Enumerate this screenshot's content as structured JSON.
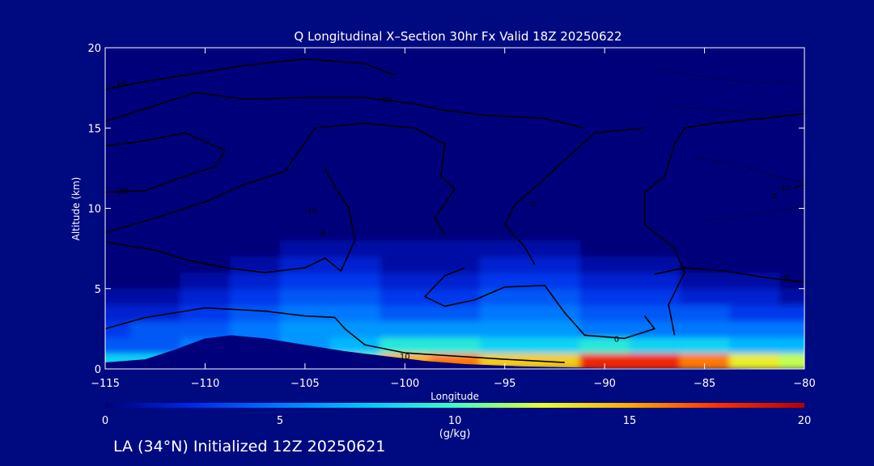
{
  "chart_data": {
    "type": "heatmap",
    "title": "Q Longitudinal X–Section 30hr  Fx Valid 18Z 20250622",
    "xlabel": "Longitude",
    "ylabel": "Altitude (km)",
    "xlim": [
      -115,
      -80
    ],
    "ylim": [
      0,
      20
    ],
    "x_ticks": [
      -115,
      -110,
      -105,
      -100,
      -95,
      -90,
      -85,
      -80
    ],
    "x_tick_labels": [
      "−115",
      "−110",
      "−105",
      "−100",
      "−95",
      "−90",
      "−85",
      "−80"
    ],
    "y_ticks": [
      0,
      5,
      10,
      15,
      20
    ],
    "y_tick_labels": [
      "0",
      "5",
      "10",
      "15",
      "20"
    ],
    "colorbar": {
      "label": "(g/kg)",
      "range": [
        0,
        20
      ],
      "ticks": [
        0,
        5,
        10,
        15,
        20
      ],
      "tick_labels": [
        "0",
        "5",
        "10",
        "15",
        "20"
      ],
      "colors": [
        "#00007a",
        "#0028e6",
        "#0078ff",
        "#00c8ff",
        "#40ffc0",
        "#e6ff30",
        "#ffaa00",
        "#ff3000",
        "#b40000"
      ]
    },
    "moisture_grid": {
      "x": [
        -115,
        -112.5,
        -110,
        -107.5,
        -105,
        -102.5,
        -100,
        -97.5,
        -95,
        -92.5,
        -90,
        -87.5,
        -85,
        -82.5,
        -80
      ],
      "z": [
        0.5,
        1.5,
        2.5,
        3.5,
        4.5,
        5.5,
        6.5,
        7.5,
        8.5
      ],
      "values": [
        [
          8,
          8,
          8,
          8,
          8,
          11,
          15,
          16,
          14,
          14,
          18,
          18,
          16,
          13,
          12
        ],
        [
          4,
          4,
          5,
          5,
          6,
          7,
          9,
          9,
          8,
          8,
          9,
          8,
          8,
          7,
          7
        ],
        [
          3,
          4,
          4,
          5,
          6,
          6,
          6,
          6,
          6,
          6,
          5,
          5,
          5,
          5,
          5
        ],
        [
          2,
          2,
          3,
          4,
          5,
          5,
          4,
          4,
          5,
          5,
          4,
          4,
          4,
          3,
          3
        ],
        [
          1,
          1,
          2,
          3,
          4,
          4,
          3,
          3,
          4,
          4,
          3,
          3,
          2,
          2,
          1
        ],
        [
          0,
          0,
          1,
          2,
          3,
          3,
          2,
          2,
          3,
          3,
          2,
          2,
          1,
          1,
          0
        ],
        [
          0,
          0,
          0,
          1,
          2,
          2,
          1,
          1,
          2,
          2,
          1,
          1,
          0,
          0,
          0
        ],
        [
          0,
          0,
          0,
          0,
          1,
          1,
          1,
          1,
          1,
          1,
          0,
          0,
          0,
          0,
          0
        ],
        [
          0,
          0,
          0,
          0,
          0,
          0,
          0,
          0,
          0,
          0,
          0,
          0,
          0,
          0,
          0
        ]
      ]
    },
    "terrain": [
      [
        -115,
        0.4
      ],
      [
        -113,
        0.6
      ],
      [
        -111.5,
        1.2
      ],
      [
        -110,
        1.9
      ],
      [
        -108.7,
        2.1
      ],
      [
        -107,
        1.9
      ],
      [
        -105,
        1.5
      ],
      [
        -103,
        1.1
      ],
      [
        -101,
        0.8
      ],
      [
        -99,
        0.5
      ],
      [
        -97,
        0.3
      ],
      [
        -94,
        0.15
      ],
      [
        -90,
        0.05
      ],
      [
        -85,
        0.05
      ],
      [
        -80,
        0
      ]
    ],
    "temperature_contours": [
      {
        "label": "10",
        "label_at": [
          -114.2,
          17.8
        ],
        "points": [
          [
            -115,
            17.4
          ],
          [
            -113,
            17.9
          ],
          [
            -111,
            18.3
          ],
          [
            -108,
            18.9
          ],
          [
            -105,
            19.3
          ],
          [
            -102,
            19.0
          ],
          [
            -100.5,
            18.3
          ]
        ]
      },
      {
        "label": "-10",
        "label_at": [
          -101,
          16.8
        ],
        "points": [
          [
            -115,
            15.4
          ],
          [
            -113,
            16.2
          ],
          [
            -110.5,
            17.2
          ],
          [
            -108,
            16.8
          ],
          [
            -105,
            16.9
          ],
          [
            -102,
            16.9
          ],
          [
            -99.5,
            16.5
          ],
          [
            -98,
            16.1
          ],
          [
            -96,
            15.8
          ],
          [
            -93,
            15.6
          ],
          [
            -91,
            15.0
          ]
        ]
      },
      {
        "label": "-20",
        "label_at": [
          -114.2,
          11.1
        ],
        "points": [
          [
            -115,
            11.0
          ],
          [
            -113,
            11.1
          ],
          [
            -111,
            12.0
          ],
          [
            -109.5,
            12.6
          ],
          [
            -109,
            13.6
          ],
          [
            -111,
            14.7
          ],
          [
            -113.5,
            14.1
          ],
          [
            -115,
            13.9
          ]
        ]
      },
      {
        "label": "-10",
        "label_at": [
          -104.7,
          9.9
        ],
        "points": [
          [
            -115,
            8.5
          ],
          [
            -113,
            9.2
          ],
          [
            -110,
            10.4
          ],
          [
            -108,
            11.5
          ],
          [
            -106,
            12.3
          ],
          [
            -104.5,
            15.0
          ],
          [
            -102,
            15.3
          ],
          [
            -99.5,
            15.0
          ],
          [
            -98,
            14.0
          ],
          [
            -98.2,
            12.0
          ],
          [
            -97.5,
            11.2
          ],
          [
            -98.5,
            9.4
          ],
          [
            -98,
            8.3
          ]
        ]
      },
      {
        "label": "0",
        "label_at": [
          -104.1,
          8.5
        ],
        "points": [
          [
            -115,
            7.9
          ],
          [
            -112.5,
            7.4
          ],
          [
            -111,
            6.8
          ],
          [
            -109,
            6.3
          ],
          [
            -107,
            6.0
          ],
          [
            -105,
            6.3
          ],
          [
            -104,
            6.9
          ],
          [
            -103.2,
            6.1
          ],
          [
            -102.5,
            8.0
          ],
          [
            -102.8,
            10.0
          ],
          [
            -103.5,
            11.3
          ],
          [
            -104,
            12.5
          ]
        ]
      },
      {
        "label": "0",
        "label_at": [
          -93.6,
          10.3
        ],
        "points": [
          [
            -93.5,
            6.5
          ],
          [
            -94,
            7.6
          ],
          [
            -95,
            9.0
          ],
          [
            -94.5,
            10.2
          ],
          [
            -93.5,
            11.3
          ],
          [
            -92,
            13.0
          ],
          [
            -90.5,
            14.7
          ],
          [
            -88,
            15.0
          ]
        ]
      },
      {
        "label": "0",
        "label_at": [
          -81.5,
          10.8
        ],
        "points": [
          [
            -86.5,
            2.1
          ],
          [
            -86.8,
            4.0
          ],
          [
            -86,
            6.0
          ],
          [
            -86.5,
            7.5
          ],
          [
            -88,
            9.0
          ],
          [
            -88,
            11.0
          ],
          [
            -87,
            12.0
          ],
          [
            -86.5,
            14.0
          ],
          [
            -86,
            15.0
          ],
          [
            -84.5,
            15.3
          ],
          [
            -82,
            15.6
          ],
          [
            -80,
            15.9
          ]
        ]
      },
      {
        "label": "10",
        "label_at": [
          -100,
          0.8
        ],
        "points": [
          [
            -115,
            2.5
          ],
          [
            -113,
            3.2
          ],
          [
            -110,
            3.8
          ],
          [
            -107,
            3.6
          ],
          [
            -105,
            3.3
          ],
          [
            -103.5,
            3.2
          ],
          [
            -103,
            2.5
          ],
          [
            -102,
            1.5
          ],
          [
            -100,
            1.0
          ],
          [
            -97.5,
            0.8
          ],
          [
            -95,
            0.6
          ],
          [
            -92,
            0.4
          ]
        ]
      },
      {
        "label": "0",
        "label_at": [
          -89.4,
          1.9
        ],
        "points": [
          [
            -88,
            3.3
          ],
          [
            -87.5,
            2.5
          ],
          [
            -89,
            1.9
          ],
          [
            -91,
            2.1
          ],
          [
            -92,
            3.5
          ],
          [
            -93,
            5.2
          ],
          [
            -95,
            5.1
          ],
          [
            -96.5,
            4.3
          ],
          [
            -98,
            3.9
          ],
          [
            -99,
            4.5
          ],
          [
            -98,
            5.8
          ],
          [
            -97,
            6.3
          ]
        ]
      },
      {
        "label": "0",
        "label_at": [
          -80.9,
          5.7
        ],
        "points": [
          [
            -87.5,
            5.9
          ],
          [
            -86,
            6.3
          ],
          [
            -84,
            6.1
          ],
          [
            -82,
            5.7
          ],
          [
            -80,
            5.4
          ]
        ]
      },
      {
        "label": "-10",
        "label_at": [
          -81,
          11.3
        ],
        "points": [
          [
            -80.5,
            11.3
          ],
          [
            -79.8,
            11.5
          ]
        ]
      }
    ],
    "dashed_contours": [
      [
        [
          -87.5,
          18.7
        ],
        [
          -85,
          18.2
        ],
        [
          -82.5,
          17.8
        ],
        [
          -80,
          18.0
        ]
      ],
      [
        [
          -87,
          16.4
        ],
        [
          -84.5,
          16.1
        ],
        [
          -82,
          15.9
        ],
        [
          -80,
          16.1
        ]
      ],
      [
        [
          -85.5,
          13.2
        ],
        [
          -83,
          12.6
        ],
        [
          -81.5,
          12.0
        ],
        [
          -80,
          11.6
        ]
      ],
      [
        [
          -85,
          9.2
        ],
        [
          -83,
          9.6
        ],
        [
          -81,
          9.9
        ],
        [
          -80,
          10.2
        ]
      ]
    ],
    "footer": "LA (34°N) Initialized 12Z 20250621"
  }
}
